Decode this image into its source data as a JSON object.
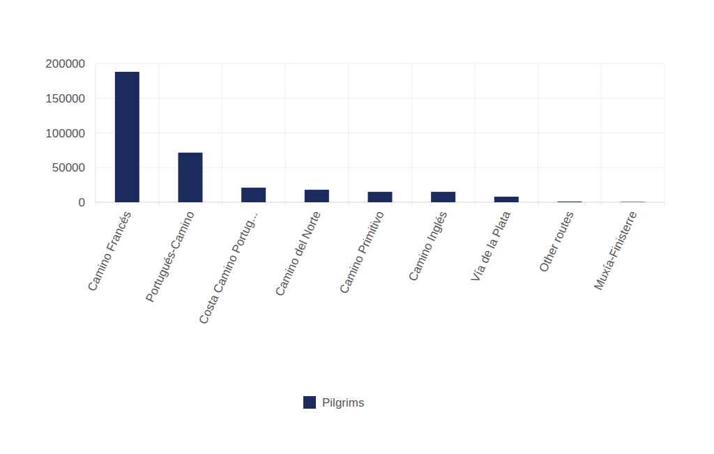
{
  "chart_data": {
    "type": "bar",
    "categories": [
      "Camino Francés",
      "Portugués-Camino",
      "Costa Camino Portug...",
      "Camino del Norte",
      "Camino Primitivo",
      "Camino Inglés",
      "Vía de la Plata",
      "Other routes",
      "Muxía-Finisterre"
    ],
    "series": [
      {
        "name": "Pilgrims",
        "color": "#1b2b5e",
        "values": [
          188000,
          71500,
          21000,
          18000,
          15000,
          15000,
          8000,
          1000,
          500
        ]
      }
    ],
    "ylim": [
      0,
      200000
    ],
    "yticks": [
      0,
      50000,
      100000,
      150000,
      200000
    ],
    "grid": true,
    "legend": "bottom"
  }
}
